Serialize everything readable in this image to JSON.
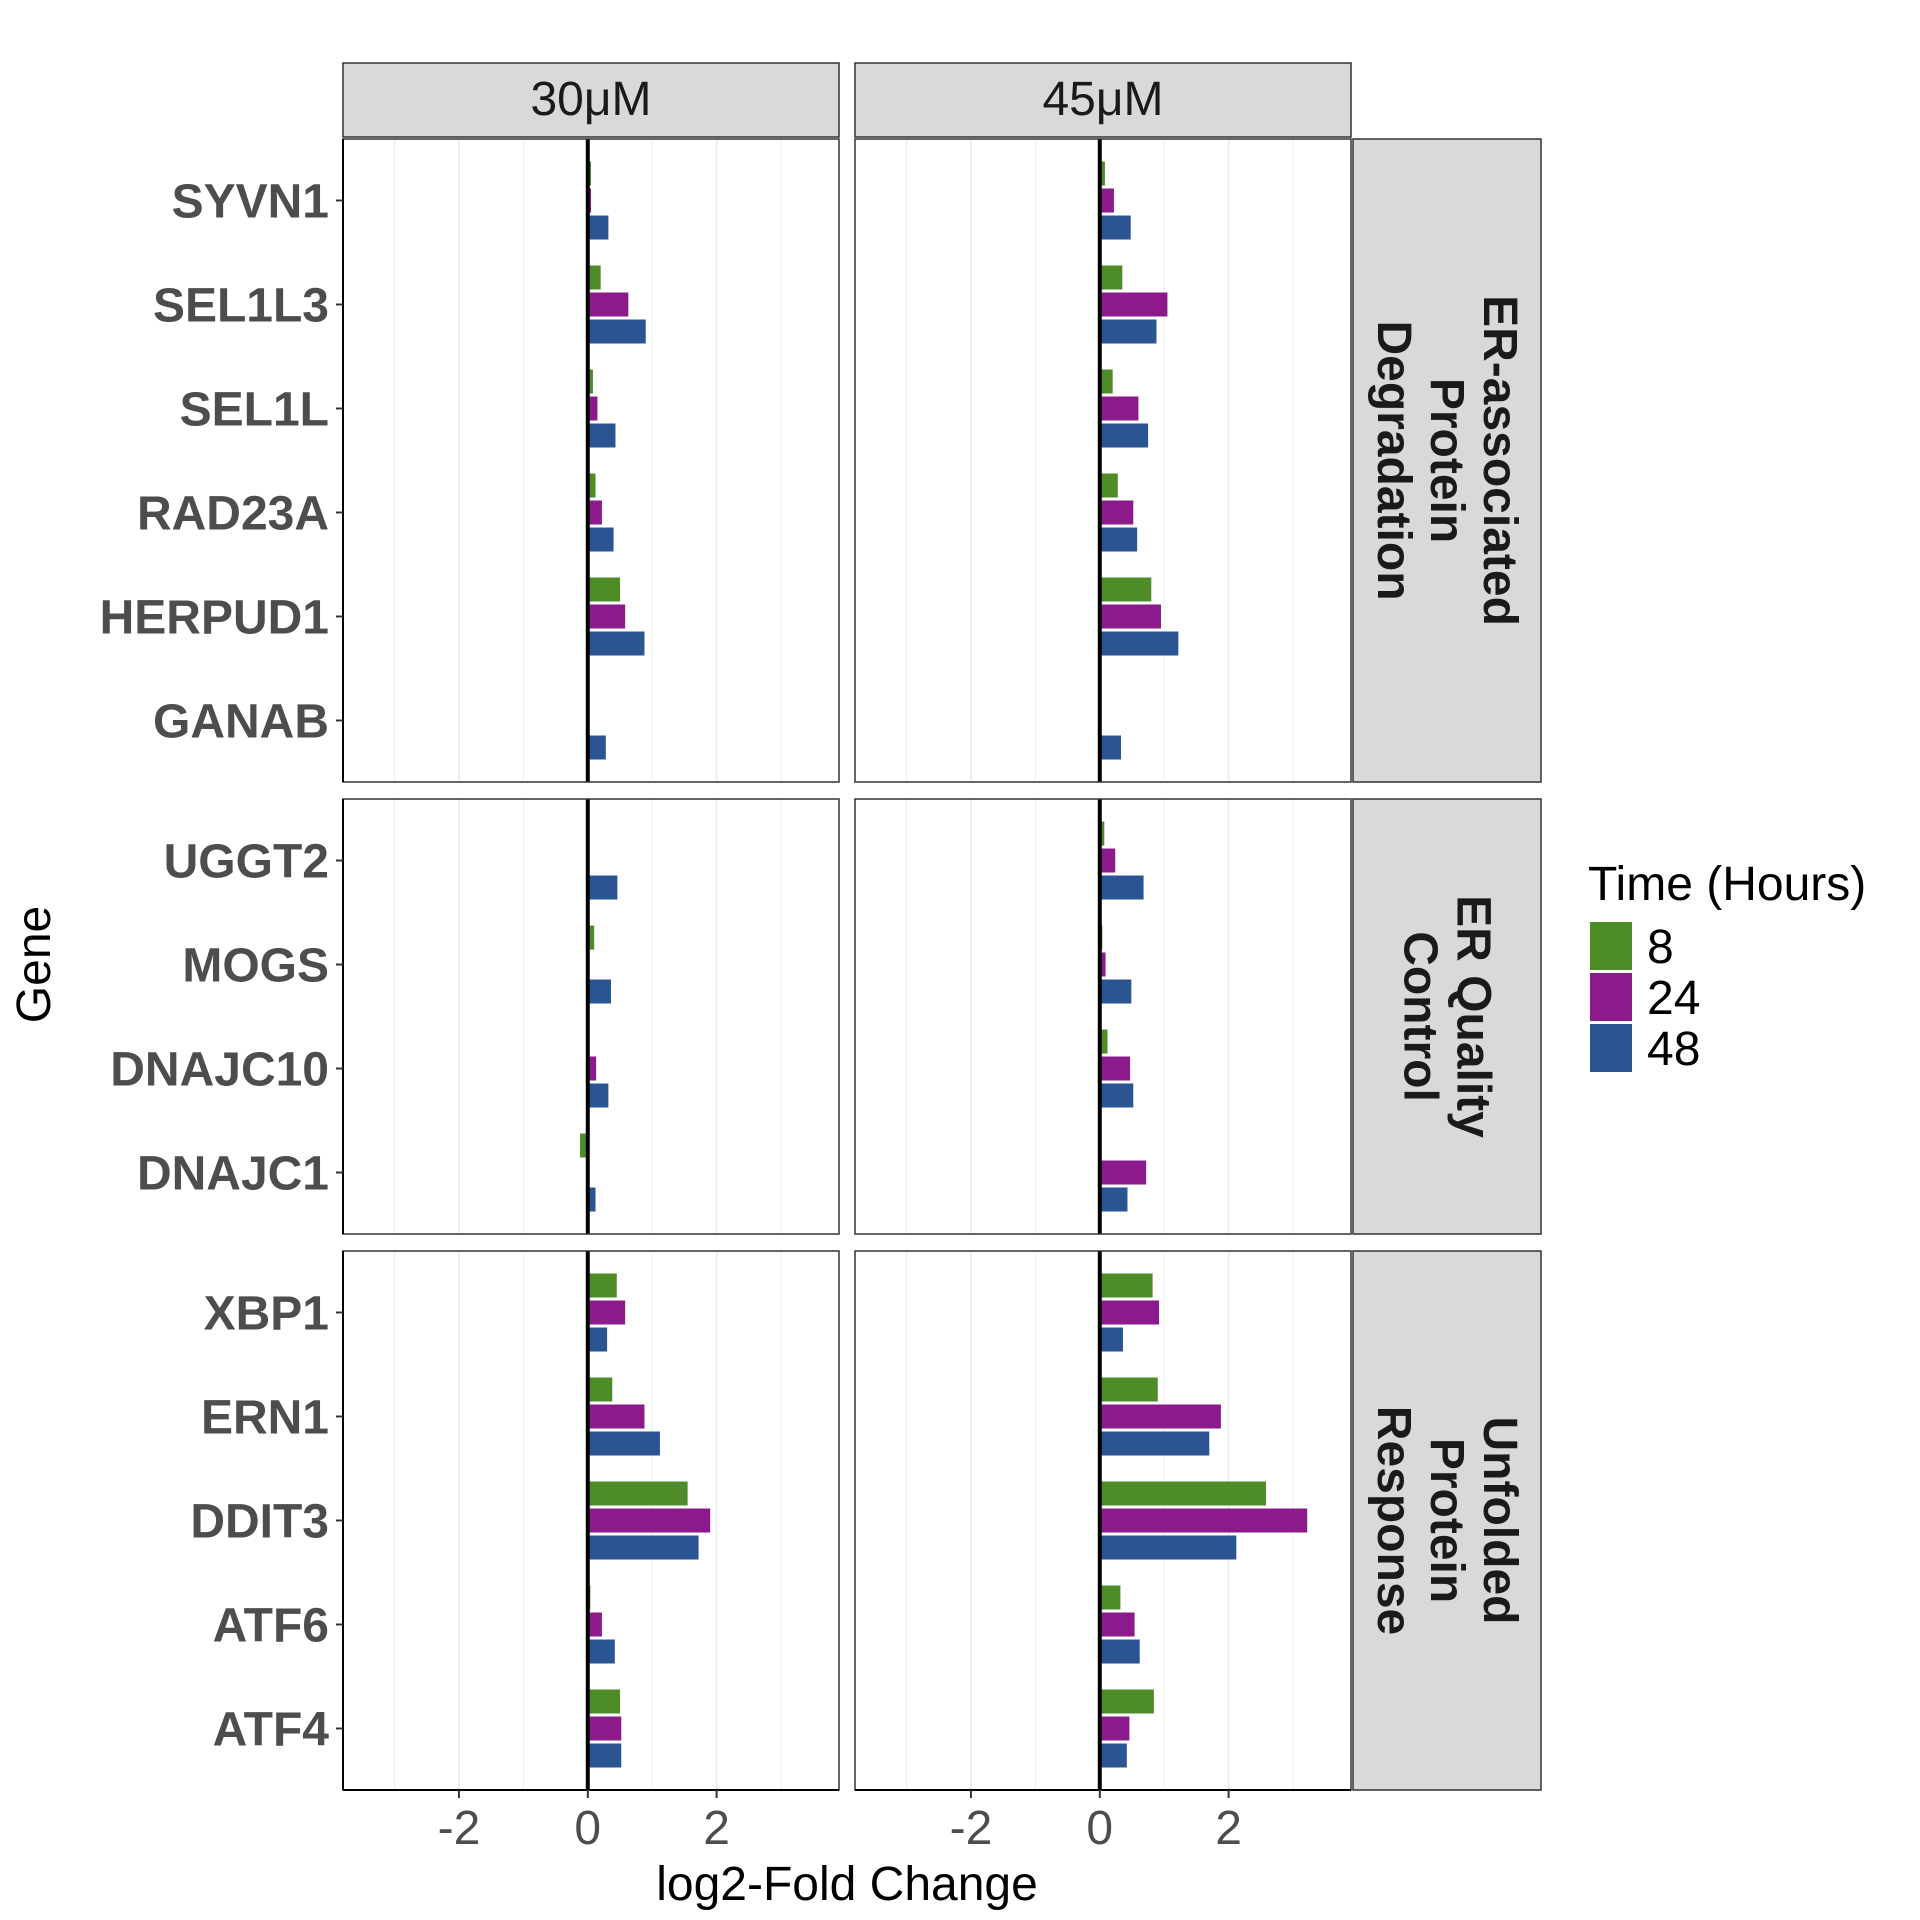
{
  "chart_data": {
    "type": "bar",
    "orientation": "horizontal",
    "xlabel": "log2-Fold Change",
    "ylabel": "Gene",
    "xlim": [
      -3.8,
      3.9
    ],
    "x_ticks": [
      -2,
      0,
      2
    ],
    "x_tick_labels": [
      "-2",
      "0",
      "2"
    ],
    "grid": true,
    "legend_title": "Time (Hours)",
    "legend_position": "right",
    "series": [
      {
        "name": "8",
        "color": "#4e8c28"
      },
      {
        "name": "24",
        "color": "#8c1a8c"
      },
      {
        "name": "48",
        "color": "#2a5592"
      }
    ],
    "columns": [
      "30μM",
      "45μM"
    ],
    "row_groups": [
      {
        "label": "ER-associated Protein Degradation",
        "label_lines": [
          "ER-associated",
          "Protein",
          "Degradation"
        ],
        "genes": [
          "SYVN1",
          "SEL1L3",
          "SEL1L",
          "RAD23A",
          "HERPUD1",
          "GANAB"
        ],
        "values": {
          "30μM": {
            "8": [
              0.05,
              0.2,
              0.08,
              0.12,
              0.5,
              0
            ],
            "24": [
              0.05,
              0.63,
              0.15,
              0.22,
              0.58,
              0
            ],
            "48": [
              0.32,
              0.9,
              0.43,
              0.4,
              0.88,
              0.28
            ]
          },
          "45μM": {
            "8": [
              0.08,
              0.35,
              0.2,
              0.28,
              0.8,
              0
            ],
            "24": [
              0.22,
              1.05,
              0.6,
              0.52,
              0.95,
              0
            ],
            "48": [
              0.48,
              0.88,
              0.75,
              0.58,
              1.22,
              0.33
            ]
          }
        }
      },
      {
        "label": "ER Quality Control",
        "label_lines": [
          "ER Quality",
          "Control"
        ],
        "genes": [
          "UGGT2",
          "MOGS",
          "DNAJC10",
          "DNAJC1"
        ],
        "values": {
          "30μM": {
            "8": [
              0,
              0.1,
              0,
              -0.12
            ],
            "24": [
              0,
              0,
              0.13,
              0
            ],
            "48": [
              0.46,
              0.36,
              0.32,
              0.12
            ]
          },
          "45μM": {
            "8": [
              0.07,
              0.04,
              0.12,
              0
            ],
            "24": [
              0.24,
              0.09,
              0.47,
              0.72
            ],
            "48": [
              0.68,
              0.49,
              0.52,
              0.43
            ]
          }
        }
      },
      {
        "label": "Unfolded Protein Response",
        "label_lines": [
          "Unfolded",
          "Protein",
          "Response"
        ],
        "genes": [
          "XBP1",
          "ERN1",
          "DDIT3",
          "ATF6",
          "ATF4"
        ],
        "values": {
          "30μM": {
            "8": [
              0.45,
              0.38,
              1.55,
              0.04,
              0.5
            ],
            "24": [
              0.58,
              0.88,
              1.9,
              0.22,
              0.52
            ],
            "48": [
              0.3,
              1.12,
              1.72,
              0.42,
              0.52
            ]
          },
          "45μM": {
            "8": [
              0.82,
              0.9,
              2.58,
              0.32,
              0.84
            ],
            "24": [
              0.92,
              1.88,
              3.22,
              0.54,
              0.46
            ],
            "48": [
              0.36,
              1.7,
              2.12,
              0.62,
              0.42
            ]
          }
        }
      }
    ]
  }
}
